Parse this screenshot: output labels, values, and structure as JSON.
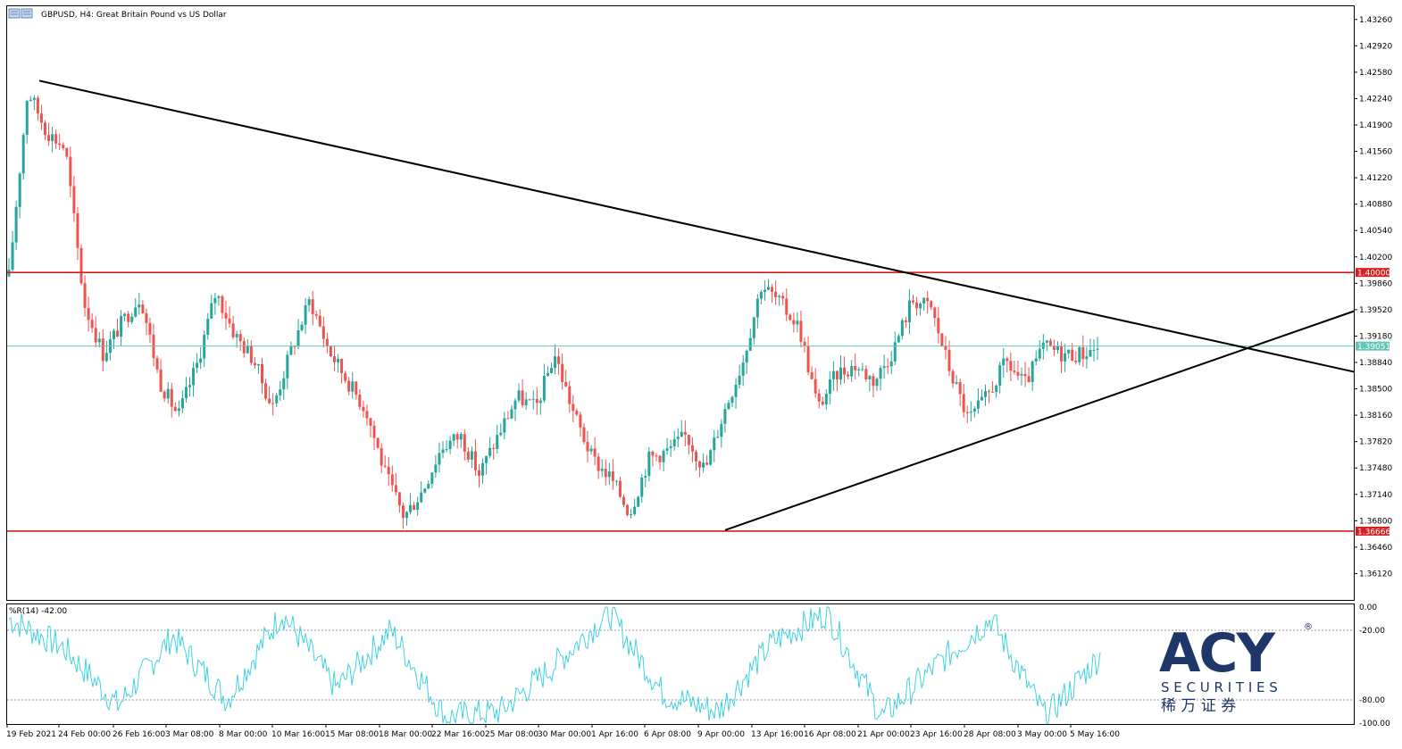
{
  "header": {
    "title": "GBPUSD, H4:  Great Britain Pound vs US Dollar"
  },
  "indicator": {
    "label": "%R(14) -42.00",
    "scale_labels": [
      "0.00",
      "-20.00",
      "-80.00",
      "-100.00"
    ],
    "levels": [
      -20,
      -80
    ],
    "range": [
      -100,
      0
    ],
    "line_color": "#3fd3e0"
  },
  "logo": {
    "text": "ACY",
    "registered": "®",
    "securities": "S E C U R I T I E S",
    "chinese": "稀 万 证 券",
    "color": "#1f3668"
  },
  "colors": {
    "bull": "#26a69a",
    "bear": "#ef5350",
    "level_line": "#d81e1e",
    "current_price_line": "#5fc7b8",
    "trendline": "#000000"
  },
  "chart_data": [
    {
      "type": "candlestick",
      "symbol": "GBPUSD",
      "timeframe": "H4",
      "ylim": [
        1.3578,
        1.4343
      ],
      "y_ticks": [
        "1.43260",
        "1.42920",
        "1.42580",
        "1.42240",
        "1.41900",
        "1.41560",
        "1.41220",
        "1.40880",
        "1.40540",
        "1.40200",
        "1.39860",
        "1.39520",
        "1.39180",
        "1.38840",
        "1.38500",
        "1.38160",
        "1.37820",
        "1.37480",
        "1.37140",
        "1.36800",
        "1.36460",
        "1.36120"
      ],
      "x_ticks": [
        "19 Feb 2021",
        "24 Feb 00:00",
        "26 Feb 16:00",
        "3 Mar 08:00",
        "8 Mar 00:00",
        "10 Mar 16:00",
        "15 Mar 08:00",
        "18 Mar 00:00",
        "22 Mar 16:00",
        "25 Mar 08:00",
        "30 Mar 00:00",
        "1 Apr 16:00",
        "6 Apr 08:00",
        "9 Apr 00:00",
        "13 Apr 16:00",
        "16 Apr 08:00",
        "21 Apr 00:00",
        "23 Apr 16:00",
        "28 Apr 08:00",
        "3 May 00:00",
        "5 May 16:00"
      ],
      "price_levels": [
        {
          "price": 1.4,
          "label": "1.40000",
          "color": "#d81e1e"
        },
        {
          "price": 1.36666,
          "label": "1.36666",
          "color": "#d81e1e"
        },
        {
          "price": 1.39051,
          "label": "1.39051",
          "color": "#5fc7b8"
        }
      ],
      "trendlines": [
        {
          "name": "descending resistance",
          "from": {
            "x": "24 Feb 00:00",
            "y": 1.4247
          },
          "to": {
            "x": "9 May (right edge)",
            "y": 1.3872
          }
        },
        {
          "name": "ascending support",
          "from": {
            "x": "9 Apr 00:00",
            "y": 1.3668
          },
          "to": {
            "x": "9 May (right edge)",
            "y": 1.395
          }
        }
      ],
      "key_points": [
        {
          "x": "19 Feb 2021",
          "y": 1.3995
        },
        {
          "x": "24 Feb 00:00",
          "y": 1.4235
        },
        {
          "x": "24 Feb 12:00",
          "y": 1.4182
        },
        {
          "x": "26 Feb 00:00",
          "y": 1.416
        },
        {
          "x": "26 Feb 16:00",
          "y": 1.396
        },
        {
          "x": "1 Mar 12:00",
          "y": 1.3895
        },
        {
          "x": "2 Mar 12:00",
          "y": 1.3935
        },
        {
          "x": "3 Mar 08:00",
          "y": 1.397
        },
        {
          "x": "5 Mar 00:00",
          "y": 1.386
        },
        {
          "x": "8 Mar 00:00",
          "y": 1.3815
        },
        {
          "x": "9 Mar 00:00",
          "y": 1.3882
        },
        {
          "x": "10 Mar 16:00",
          "y": 1.3975
        },
        {
          "x": "12 Mar 00:00",
          "y": 1.392
        },
        {
          "x": "15 Mar 08:00",
          "y": 1.3888
        },
        {
          "x": "16 Mar 00:00",
          "y": 1.3825
        },
        {
          "x": "17 Mar 00:00",
          "y": 1.39
        },
        {
          "x": "18 Mar 00:00",
          "y": 1.3965
        },
        {
          "x": "19 Mar 08:00",
          "y": 1.39
        },
        {
          "x": "22 Mar 00:00",
          "y": 1.386
        },
        {
          "x": "22 Mar 16:00",
          "y": 1.3822
        },
        {
          "x": "23 Mar 12:00",
          "y": 1.374
        },
        {
          "x": "24 Mar 08:00",
          "y": 1.3685
        },
        {
          "x": "25 Mar 08:00",
          "y": 1.372
        },
        {
          "x": "26 Mar 08:00",
          "y": 1.3775
        },
        {
          "x": "29 Mar 08:00",
          "y": 1.379
        },
        {
          "x": "30 Mar 00:00",
          "y": 1.374
        },
        {
          "x": "31 Mar 08:00",
          "y": 1.379
        },
        {
          "x": "1 Apr 16:00",
          "y": 1.384
        },
        {
          "x": "2 Apr 08:00",
          "y": 1.3825
        },
        {
          "x": "5 Apr 08:00",
          "y": 1.3895
        },
        {
          "x": "6 Apr 08:00",
          "y": 1.382
        },
        {
          "x": "7 Apr 00:00",
          "y": 1.376
        },
        {
          "x": "8 Apr 08:00",
          "y": 1.3735
        },
        {
          "x": "9 Apr 00:00",
          "y": 1.369
        },
        {
          "x": "12 Apr 00:00",
          "y": 1.376
        },
        {
          "x": "13 Apr 16:00",
          "y": 1.377
        },
        {
          "x": "14 Apr 08:00",
          "y": 1.379
        },
        {
          "x": "15 Apr 08:00",
          "y": 1.3745
        },
        {
          "x": "16 Apr 00:00",
          "y": 1.382
        },
        {
          "x": "16 Apr 08:00",
          "y": 1.3885
        },
        {
          "x": "19 Apr 00:00",
          "y": 1.3985
        },
        {
          "x": "20 Apr 00:00",
          "y": 1.396
        },
        {
          "x": "21 Apr 00:00",
          "y": 1.393
        },
        {
          "x": "22 Apr 00:00",
          "y": 1.3825
        },
        {
          "x": "23 Apr 00:00",
          "y": 1.387
        },
        {
          "x": "23 Apr 16:00",
          "y": 1.388
        },
        {
          "x": "26 Apr 08:00",
          "y": 1.386
        },
        {
          "x": "27 Apr 00:00",
          "y": 1.39
        },
        {
          "x": "28 Apr 08:00",
          "y": 1.3965
        },
        {
          "x": "29 Apr 00:00",
          "y": 1.3955
        },
        {
          "x": "30 Apr 00:00",
          "y": 1.3875
        },
        {
          "x": "30 Apr 16:00",
          "y": 1.381
        },
        {
          "x": "3 May 00:00",
          "y": 1.384
        },
        {
          "x": "3 May 16:00",
          "y": 1.3885
        },
        {
          "x": "4 May 08:00",
          "y": 1.3855
        },
        {
          "x": "5 May 00:00",
          "y": 1.3905
        },
        {
          "x": "5 May 16:00",
          "y": 1.3895
        },
        {
          "x": "6 May 16:00",
          "y": 1.3895
        },
        {
          "x": "7 May 00:00",
          "y": 1.3905
        }
      ]
    },
    {
      "type": "line",
      "name": "%R(14)",
      "ylim": [
        -100,
        0
      ],
      "levels": [
        -20,
        -80
      ],
      "current_value": -42.0,
      "x": [
        "19 Feb 2021",
        "24 Feb 00:00",
        "26 Feb 16:00",
        "3 Mar 08:00",
        "8 Mar 00:00",
        "10 Mar 16:00",
        "15 Mar 08:00",
        "18 Mar 00:00",
        "22 Mar 16:00",
        "25 Mar 08:00",
        "30 Mar 00:00",
        "1 Apr 16:00",
        "6 Apr 08:00",
        "9 Apr 00:00",
        "13 Apr 16:00",
        "16 Apr 08:00",
        "21 Apr 00:00",
        "23 Apr 16:00",
        "28 Apr 08:00",
        "3 May 00:00",
        "5 May 16:00"
      ],
      "values": [
        -10,
        -35,
        -85,
        -25,
        -80,
        -5,
        -70,
        -20,
        -95,
        -90,
        -50,
        -5,
        -75,
        -90,
        -30,
        -5,
        -95,
        -50,
        -10,
        -95,
        -42
      ]
    }
  ]
}
